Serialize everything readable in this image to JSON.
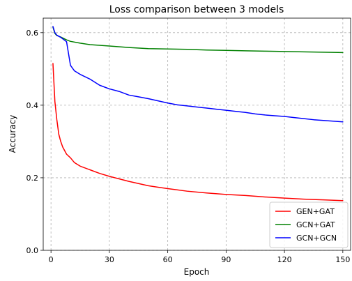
{
  "chart_data": {
    "type": "line",
    "title": "Loss comparison between 3 models",
    "xlabel": "Epoch",
    "ylabel": "Accuracy",
    "xlim": [
      -4,
      154
    ],
    "ylim": [
      0.0,
      0.64
    ],
    "xticks": [
      0,
      30,
      60,
      90,
      120,
      150
    ],
    "xtick_labels": [
      "0",
      "30",
      "60",
      "90",
      "120",
      "150"
    ],
    "yticks": [
      0.0,
      0.2,
      0.4,
      0.6
    ],
    "ytick_labels": [
      "0.0",
      "0.2",
      "0.4",
      "0.6"
    ],
    "grid": true,
    "legend_position": "bottom-right",
    "series": [
      {
        "name": "GEN+GAT",
        "color": "#ff0000",
        "x": [
          1,
          2,
          3,
          4,
          5,
          6,
          8,
          10,
          12,
          15,
          20,
          25,
          30,
          35,
          40,
          45,
          50,
          55,
          60,
          70,
          80,
          90,
          100,
          110,
          120,
          130,
          140,
          150
        ],
        "y": [
          0.515,
          0.41,
          0.36,
          0.32,
          0.3,
          0.285,
          0.265,
          0.255,
          0.242,
          0.232,
          0.222,
          0.212,
          0.204,
          0.197,
          0.19,
          0.184,
          0.178,
          0.174,
          0.17,
          0.163,
          0.158,
          0.154,
          0.151,
          0.147,
          0.144,
          0.141,
          0.139,
          0.137
        ]
      },
      {
        "name": "GCN+GAT",
        "color": "#008000",
        "x": [
          1,
          2,
          3,
          5,
          8,
          10,
          15,
          20,
          30,
          40,
          50,
          60,
          70,
          80,
          90,
          100,
          110,
          120,
          130,
          140,
          150
        ],
        "y": [
          0.615,
          0.598,
          0.592,
          0.588,
          0.58,
          0.576,
          0.571,
          0.567,
          0.563,
          0.559,
          0.556,
          0.555,
          0.554,
          0.552,
          0.551,
          0.55,
          0.549,
          0.548,
          0.547,
          0.546,
          0.545
        ]
      },
      {
        "name": "GCN+GCN",
        "color": "#0000ff",
        "x": [
          1,
          2,
          3,
          5,
          8,
          10,
          12,
          15,
          20,
          25,
          30,
          35,
          40,
          45,
          50,
          55,
          60,
          65,
          70,
          75,
          80,
          85,
          90,
          95,
          100,
          105,
          110,
          115,
          120,
          125,
          130,
          135,
          140,
          145,
          150
        ],
        "y": [
          0.617,
          0.6,
          0.593,
          0.587,
          0.575,
          0.51,
          0.495,
          0.485,
          0.472,
          0.455,
          0.445,
          0.438,
          0.428,
          0.423,
          0.418,
          0.412,
          0.406,
          0.401,
          0.398,
          0.395,
          0.392,
          0.389,
          0.386,
          0.383,
          0.38,
          0.376,
          0.373,
          0.371,
          0.369,
          0.366,
          0.363,
          0.36,
          0.358,
          0.356,
          0.354
        ]
      }
    ]
  }
}
